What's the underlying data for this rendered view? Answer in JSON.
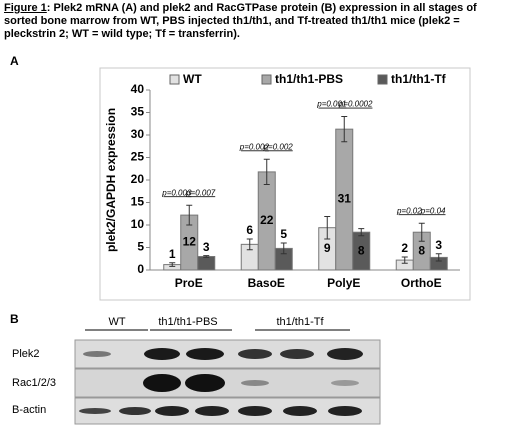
{
  "caption": {
    "label": "Figure 1",
    "text": ": Plek2 mRNA (A) and plek2 and RacGTPase protein (B) expression in all stages of sorted bone marrow from WT, PBS injected th1/th1, and Tf-treated th1/th1 mice (plek2 = pleckstrin 2; WT = wild type; Tf = transferrin)."
  },
  "panel_a_label": "A",
  "chart_data": {
    "type": "bar",
    "y_label": "plek2/GAPDH expression",
    "categories": [
      "ProE",
      "BasoE",
      "PolyE",
      "OrthoE"
    ],
    "series": [
      {
        "name": "WT",
        "color": "#e2e2e2",
        "values": [
          1.2,
          5.7,
          9.4,
          2.2
        ],
        "value_labels": [
          "1",
          "6",
          "9",
          "2"
        ],
        "errors": [
          0.4,
          1.2,
          2.5,
          0.7
        ]
      },
      {
        "name": "th1/th1-PBS",
        "color": "#a8a8a8",
        "values": [
          12.2,
          21.8,
          31.3,
          8.4
        ],
        "value_labels": [
          "12",
          "22",
          "31",
          "8"
        ],
        "errors": [
          2.2,
          2.8,
          2.8,
          2.0
        ]
      },
      {
        "name": "th1/th1-Tf",
        "color": "#5a5a5a",
        "values": [
          3.0,
          4.8,
          8.4,
          2.8
        ],
        "value_labels": [
          "3",
          "5",
          "8",
          "3"
        ],
        "errors": [
          0.2,
          1.2,
          0.8,
          0.8
        ]
      }
    ],
    "p_values": [
      [
        "p=0.003",
        "p=0.007"
      ],
      [
        "p=0.002",
        "p=0.002"
      ],
      [
        "p=0.001",
        "p=0.0002"
      ],
      [
        "p=0.02",
        "p=0.04"
      ]
    ],
    "ylim": [
      0,
      40
    ],
    "yticks": [
      0,
      5,
      10,
      15,
      20,
      25,
      30,
      35,
      40
    ],
    "grid": false
  },
  "panel_b": {
    "label": "B",
    "lanes": [
      "WT",
      "th1/th1-PBS",
      "th1/th1-Tf"
    ],
    "rows": [
      "Plek2",
      "Rac1/2/3",
      "B-actin"
    ]
  }
}
